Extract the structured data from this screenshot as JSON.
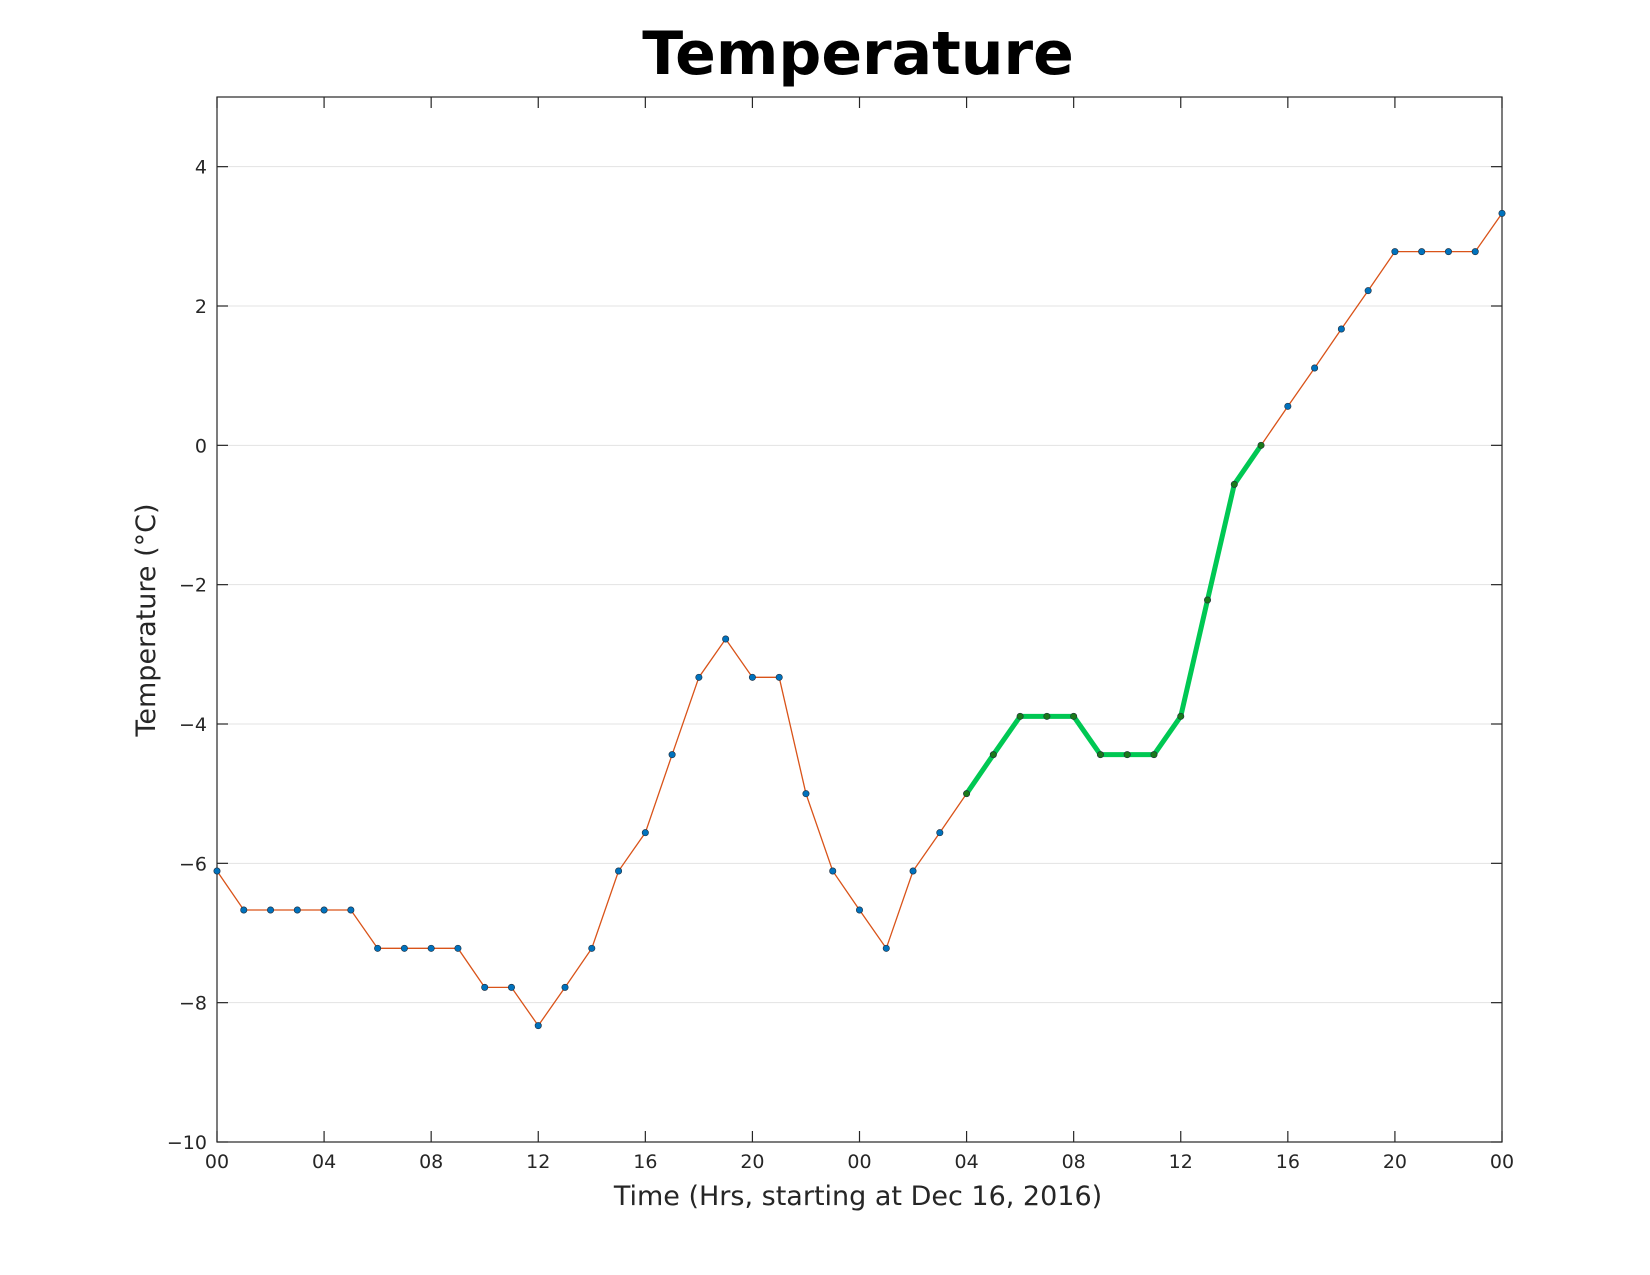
{
  "chart_data": {
    "type": "line",
    "title": "Temperature",
    "xlabel": "Time (Hrs, starting at Dec 16, 2016)",
    "ylabel": "Temperature (°C)",
    "xlim": [
      0,
      48
    ],
    "ylim": [
      -10,
      5
    ],
    "grid": "horizontal",
    "x_tick_values": [
      0,
      4,
      8,
      12,
      16,
      20,
      24,
      28,
      32,
      36,
      40,
      44,
      48
    ],
    "x_tick_labels": [
      "00",
      "04",
      "08",
      "12",
      "16",
      "20",
      "00",
      "04",
      "08",
      "12",
      "16",
      "20",
      "00"
    ],
    "y_tick_values": [
      -10,
      -8,
      -6,
      -4,
      -2,
      0,
      2,
      4
    ],
    "y_tick_labels": [
      "−10",
      "−8",
      "−6",
      "−4",
      "−2",
      "0",
      "2",
      "4"
    ],
    "x": [
      0,
      1,
      2,
      3,
      4,
      5,
      6,
      7,
      8,
      9,
      10,
      11,
      12,
      13,
      14,
      15,
      16,
      17,
      18,
      19,
      20,
      21,
      22,
      23,
      24,
      25,
      26,
      27,
      28,
      29,
      30,
      31,
      32,
      33,
      34,
      35,
      36,
      37,
      38,
      39,
      40,
      41,
      42,
      43,
      44,
      45,
      46,
      47,
      48
    ],
    "series": [
      {
        "values": [
          -6.11,
          -6.67,
          -6.67,
          -6.67,
          -6.67,
          -6.67,
          -7.22,
          -7.22,
          -7.22,
          -7.22,
          -7.78,
          -7.78,
          -8.33,
          -7.78,
          -7.22,
          -6.11,
          -5.56,
          -4.44,
          -3.33,
          -2.78,
          -3.33,
          -3.33,
          -5.0,
          -6.11,
          -6.67,
          -7.22,
          -6.11,
          -5.56,
          -5.0,
          -4.44,
          -3.89,
          -3.89,
          -3.89,
          -4.44,
          -4.44,
          -4.44,
          -3.89,
          -2.22,
          -0.56,
          0.0,
          0.56,
          1.11,
          1.67,
          2.22,
          2.78,
          2.78,
          2.78,
          2.78,
          3.33
        ],
        "line_color": "#d95319",
        "marker_color": "#0072bd"
      },
      {
        "x_range": [
          28,
          39
        ],
        "line_color": "#00c853",
        "marker_color": "#1a7a1a"
      }
    ]
  }
}
